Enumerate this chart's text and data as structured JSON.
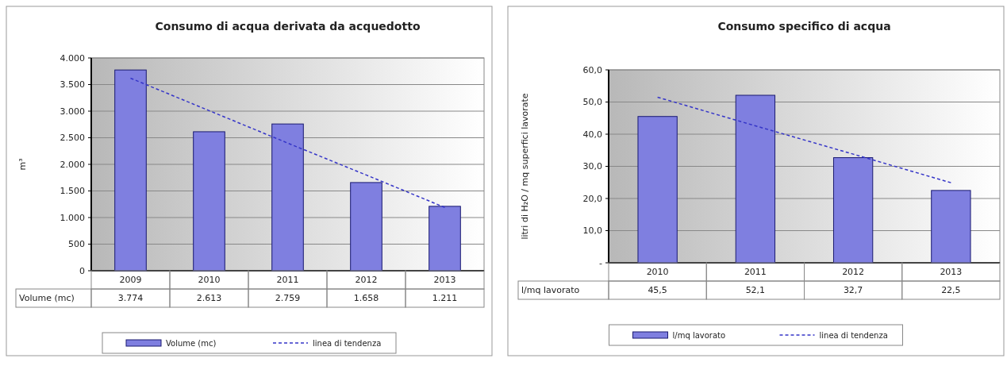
{
  "chart_data": [
    {
      "type": "bar",
      "title": "Consumo di acqua derivata da acquedotto",
      "ylabel": "m³",
      "categories": [
        "2009",
        "2010",
        "2011",
        "2012",
        "2013"
      ],
      "series": [
        {
          "name": "Volume (mc)",
          "color": "#7f7fe0",
          "values": [
            3774,
            2613,
            2759,
            1658,
            1211
          ],
          "value_labels": [
            "3.774",
            "2.613",
            "2.759",
            "1.658",
            "1.211"
          ]
        },
        {
          "name": "linea di tendenza",
          "type": "line",
          "color": "#3535c8",
          "line_style": "dashed",
          "marker": "none",
          "values": [
            3620,
            3010,
            2400,
            1800,
            1190
          ]
        }
      ],
      "ylim": [
        0,
        4000
      ],
      "yticks": [
        {
          "value": 0,
          "label": "0"
        },
        {
          "value": 500,
          "label": "500"
        },
        {
          "value": 1000,
          "label": "1.000"
        },
        {
          "value": 1500,
          "label": "1.500"
        },
        {
          "value": 2000,
          "label": "2.000"
        },
        {
          "value": 2500,
          "label": "2.500"
        },
        {
          "value": 3000,
          "label": "3.000"
        },
        {
          "value": 3500,
          "label": "3.500"
        },
        {
          "value": 4000,
          "label": "4.000"
        }
      ],
      "grid": "y",
      "legend": "bottom"
    },
    {
      "type": "bar",
      "title": "Consumo specifico di acqua",
      "ylabel": "litri di H₂O / mq superfici lavorate",
      "categories": [
        "2010",
        "2011",
        "2012",
        "2013"
      ],
      "series": [
        {
          "name": "l/mq lavorato",
          "color": "#7f7fe0",
          "values": [
            45.5,
            52.1,
            32.7,
            22.5
          ],
          "value_labels": [
            "45,5",
            "52,1",
            "32,7",
            "22,5"
          ]
        },
        {
          "name": "linea di tendenza",
          "type": "line",
          "color": "#3535c8",
          "line_style": "dashed",
          "marker": "none",
          "values": [
            51.5,
            42.6,
            33.8,
            24.9
          ]
        }
      ],
      "ylim": [
        0,
        60
      ],
      "yticks": [
        {
          "value": 0,
          "label": "-"
        },
        {
          "value": 10,
          "label": "10,0"
        },
        {
          "value": 20,
          "label": "20,0"
        },
        {
          "value": 30,
          "label": "30,0"
        },
        {
          "value": 40,
          "label": "40,0"
        },
        {
          "value": 50,
          "label": "50,0"
        },
        {
          "value": 60,
          "label": "60,0"
        }
      ],
      "grid": "y",
      "legend": "bottom"
    }
  ]
}
